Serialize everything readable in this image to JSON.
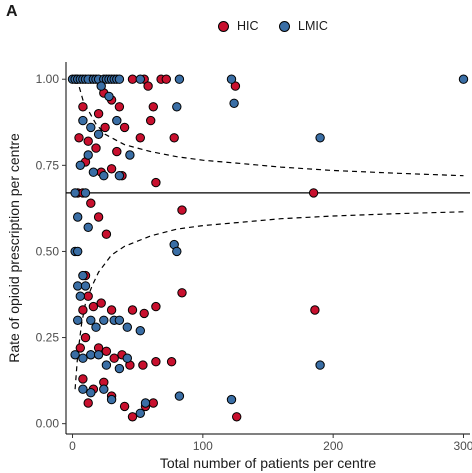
{
  "panel_label": "A",
  "legend": [
    {
      "label": "HIC",
      "color": "#c8102e"
    },
    {
      "label": "LMIC",
      "color": "#3a6ea5"
    }
  ],
  "chart_data": {
    "type": "scatter",
    "xlabel": "Total number of patients per centre",
    "ylabel": "Rate of opioid prescription per centre",
    "xlim": [
      -5,
      305
    ],
    "ylim": [
      -0.03,
      1.05
    ],
    "x_ticks": [
      0,
      100,
      200,
      300
    ],
    "x_tick_labels": [
      "0",
      "100",
      "200",
      "300"
    ],
    "y_ticks": [
      0,
      0.25,
      0.5,
      0.75,
      1
    ],
    "y_tick_labels": [
      "0.00",
      "0.25",
      "0.50",
      "0.75",
      "1.00"
    ],
    "grid": false,
    "legend_position": "top",
    "reference_line": {
      "y": 0.67,
      "style": "solid"
    },
    "funnel_limits": {
      "style": "dashed",
      "upper": [
        [
          2,
          1.0
        ],
        [
          5,
          0.98
        ],
        [
          8,
          0.94
        ],
        [
          12,
          0.91
        ],
        [
          18,
          0.87
        ],
        [
          25,
          0.84
        ],
        [
          40,
          0.81
        ],
        [
          60,
          0.79
        ],
        [
          80,
          0.775
        ],
        [
          100,
          0.765
        ],
        [
          130,
          0.755
        ],
        [
          160,
          0.745
        ],
        [
          200,
          0.735
        ],
        [
          250,
          0.727
        ],
        [
          300,
          0.72
        ]
      ],
      "lower": [
        [
          2,
          0.1
        ],
        [
          4,
          0.2
        ],
        [
          7,
          0.29
        ],
        [
          10,
          0.35
        ],
        [
          15,
          0.4
        ],
        [
          20,
          0.44
        ],
        [
          30,
          0.49
        ],
        [
          40,
          0.515
        ],
        [
          60,
          0.545
        ],
        [
          80,
          0.565
        ],
        [
          100,
          0.575
        ],
        [
          130,
          0.585
        ],
        [
          160,
          0.595
        ],
        [
          200,
          0.603
        ],
        [
          250,
          0.61
        ],
        [
          300,
          0.615
        ]
      ]
    },
    "series": [
      {
        "name": "HIC",
        "color": "#c8102e",
        "points": [
          [
            3,
            1.0
          ],
          [
            14,
            1.0
          ],
          [
            46,
            1.0
          ],
          [
            55,
            1.0
          ],
          [
            68,
            1.0
          ],
          [
            72,
            1.0
          ],
          [
            125,
            0.98
          ],
          [
            24,
            0.96
          ],
          [
            30,
            0.94
          ],
          [
            58,
            0.98
          ],
          [
            8,
            0.92
          ],
          [
            20,
            0.9
          ],
          [
            36,
            0.92
          ],
          [
            60,
            0.88
          ],
          [
            25,
            0.86
          ],
          [
            40,
            0.86
          ],
          [
            52,
            0.83
          ],
          [
            5,
            0.83
          ],
          [
            12,
            0.82
          ],
          [
            18,
            0.8
          ],
          [
            34,
            0.79
          ],
          [
            62,
            0.92
          ],
          [
            78,
            0.83
          ],
          [
            10,
            0.76
          ],
          [
            22,
            0.73
          ],
          [
            30,
            0.74
          ],
          [
            38,
            0.72
          ],
          [
            64,
            0.7
          ],
          [
            4,
            0.67
          ],
          [
            8,
            0.67
          ],
          [
            14,
            0.64
          ],
          [
            20,
            0.6
          ],
          [
            26,
            0.55
          ],
          [
            84,
            0.62
          ],
          [
            185,
            0.67
          ],
          [
            10,
            0.43
          ],
          [
            12,
            0.37
          ],
          [
            16,
            0.34
          ],
          [
            22,
            0.35
          ],
          [
            30,
            0.33
          ],
          [
            46,
            0.33
          ],
          [
            55,
            0.32
          ],
          [
            64,
            0.34
          ],
          [
            84,
            0.38
          ],
          [
            8,
            0.33
          ],
          [
            186,
            0.33
          ],
          [
            6,
            0.22
          ],
          [
            10,
            0.25
          ],
          [
            14,
            0.2
          ],
          [
            20,
            0.22
          ],
          [
            26,
            0.21
          ],
          [
            32,
            0.19
          ],
          [
            38,
            0.2
          ],
          [
            44,
            0.17
          ],
          [
            54,
            0.17
          ],
          [
            64,
            0.18
          ],
          [
            76,
            0.18
          ],
          [
            8,
            0.13
          ],
          [
            16,
            0.1
          ],
          [
            24,
            0.12
          ],
          [
            30,
            0.08
          ],
          [
            40,
            0.05
          ],
          [
            46,
            0.02
          ],
          [
            56,
            0.05
          ],
          [
            62,
            0.06
          ],
          [
            12,
            0.06
          ],
          [
            126,
            0.02
          ]
        ]
      },
      {
        "name": "LMIC",
        "color": "#3a6ea5",
        "points": [
          [
            0,
            1.0
          ],
          [
            2,
            1.0
          ],
          [
            4,
            1.0
          ],
          [
            6,
            1.0
          ],
          [
            8,
            1.0
          ],
          [
            10,
            1.0
          ],
          [
            12,
            1.0
          ],
          [
            16,
            1.0
          ],
          [
            18,
            1.0
          ],
          [
            20,
            1.0
          ],
          [
            24,
            1.0
          ],
          [
            26,
            1.0
          ],
          [
            28,
            1.0
          ],
          [
            30,
            1.0
          ],
          [
            32,
            1.0
          ],
          [
            34,
            1.0
          ],
          [
            36,
            1.0
          ],
          [
            52,
            1.0
          ],
          [
            82,
            1.0
          ],
          [
            122,
            1.0
          ],
          [
            300,
            1.0
          ],
          [
            22,
            0.98
          ],
          [
            28,
            0.95
          ],
          [
            124,
            0.93
          ],
          [
            80,
            0.92
          ],
          [
            8,
            0.88
          ],
          [
            14,
            0.86
          ],
          [
            20,
            0.84
          ],
          [
            34,
            0.88
          ],
          [
            190,
            0.83
          ],
          [
            6,
            0.75
          ],
          [
            12,
            0.78
          ],
          [
            16,
            0.73
          ],
          [
            24,
            0.72
          ],
          [
            36,
            0.72
          ],
          [
            44,
            0.78
          ],
          [
            2,
            0.67
          ],
          [
            10,
            0.67
          ],
          [
            4,
            0.6
          ],
          [
            12,
            0.57
          ],
          [
            2,
            0.5
          ],
          [
            4,
            0.5
          ],
          [
            78,
            0.52
          ],
          [
            80,
            0.5
          ],
          [
            8,
            0.43
          ],
          [
            4,
            0.4
          ],
          [
            6,
            0.37
          ],
          [
            10,
            0.4
          ],
          [
            14,
            0.3
          ],
          [
            18,
            0.28
          ],
          [
            24,
            0.3
          ],
          [
            32,
            0.3
          ],
          [
            36,
            0.3
          ],
          [
            42,
            0.28
          ],
          [
            52,
            0.27
          ],
          [
            4,
            0.3
          ],
          [
            2,
            0.2
          ],
          [
            8,
            0.19
          ],
          [
            14,
            0.2
          ],
          [
            20,
            0.2
          ],
          [
            26,
            0.17
          ],
          [
            36,
            0.16
          ],
          [
            42,
            0.19
          ],
          [
            8,
            0.1
          ],
          [
            14,
            0.09
          ],
          [
            24,
            0.1
          ],
          [
            30,
            0.07
          ],
          [
            52,
            0.03
          ],
          [
            56,
            0.06
          ],
          [
            190,
            0.17
          ],
          [
            122,
            0.07
          ],
          [
            82,
            0.08
          ]
        ]
      }
    ]
  }
}
